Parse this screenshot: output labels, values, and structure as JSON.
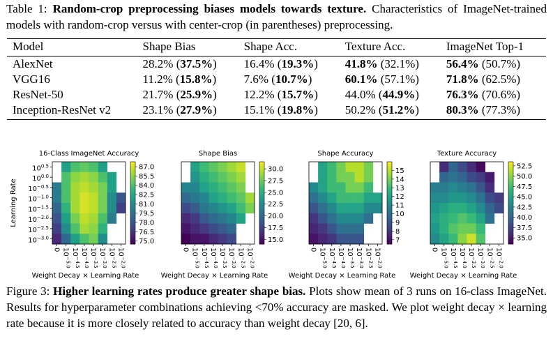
{
  "table_caption": [
    {
      "text": "Table 1: "
    },
    {
      "text": "Random-crop preprocessing biases models towards texture.",
      "bold": true
    },
    {
      "text": " Characteristics of ImageNet-trained models with random-crop versus with center-crop (in parentheses) preprocessing."
    }
  ],
  "table": {
    "header": [
      "Model",
      "Shape Bias",
      "Shape Acc.",
      "Texture Acc.",
      "ImageNet Top-1"
    ],
    "rows": [
      [
        "AlexNet",
        [
          {
            "text": "28.2% ("
          },
          {
            "text": "37.5%",
            "bold": true
          },
          {
            "text": ")"
          }
        ],
        [
          {
            "text": "16.4% ("
          },
          {
            "text": "19.3%",
            "bold": true
          },
          {
            "text": ")"
          }
        ],
        [
          {
            "text": "41.8%",
            "bold": true
          },
          {
            "text": " (32.1%)"
          }
        ],
        [
          {
            "text": "56.4%",
            "bold": true
          },
          {
            "text": " (50.7%)"
          }
        ]
      ],
      [
        "VGG16",
        [
          {
            "text": "11.2% ("
          },
          {
            "text": "15.8%",
            "bold": true
          },
          {
            "text": ")"
          }
        ],
        [
          {
            "text": "7.6% ("
          },
          {
            "text": "10.7%",
            "bold": true
          },
          {
            "text": ")"
          }
        ],
        [
          {
            "text": "60.1%",
            "bold": true
          },
          {
            "text": " (57.1%)"
          }
        ],
        [
          {
            "text": "71.8%",
            "bold": true
          },
          {
            "text": " (62.5%)"
          }
        ]
      ],
      [
        "ResNet-50",
        [
          {
            "text": "21.7% ("
          },
          {
            "text": "25.9%",
            "bold": true
          },
          {
            "text": ")"
          }
        ],
        [
          {
            "text": "12.2% ("
          },
          {
            "text": "15.7%",
            "bold": true
          },
          {
            "text": ")"
          }
        ],
        [
          {
            "text": "44.0% ("
          },
          {
            "text": "44.9%",
            "bold": true
          },
          {
            "text": ")"
          }
        ],
        [
          {
            "text": "76.3%",
            "bold": true
          },
          {
            "text": " (70.6%)"
          }
        ]
      ],
      [
        "Inception-ResNet v2",
        [
          {
            "text": "23.1% ("
          },
          {
            "text": "27.9%",
            "bold": true
          },
          {
            "text": ")"
          }
        ],
        [
          {
            "text": "15.1% ("
          },
          {
            "text": "19.8%",
            "bold": true
          },
          {
            "text": ")"
          }
        ],
        [
          {
            "text": "50.2% ("
          },
          {
            "text": "51.2%",
            "bold": true
          },
          {
            "text": ")"
          }
        ],
        [
          {
            "text": "80.3%",
            "bold": true
          },
          {
            "text": " (77.3%)"
          }
        ]
      ]
    ]
  },
  "chart_data": [
    {
      "type": "heatmap",
      "title": "16-Class ImageNet Accuracy",
      "xlabel": "Weight Decay × Learning Rate",
      "ylabel": "Learning Rate",
      "colormap": "viridis",
      "x_categories": [
        "0",
        {
          "base": "10",
          "exp": "−5.0"
        },
        {
          "base": "10",
          "exp": "−4.5"
        },
        {
          "base": "10",
          "exp": "−4.0"
        },
        {
          "base": "10",
          "exp": "−3.5"
        },
        {
          "base": "10",
          "exp": "−3.0"
        },
        {
          "base": "10",
          "exp": "−2.5"
        },
        {
          "base": "10",
          "exp": "−2.0"
        }
      ],
      "y_categories": [
        {
          "base": "10",
          "exp": "0.5"
        },
        {
          "base": "10",
          "exp": "0.0"
        },
        {
          "base": "10",
          "exp": "−0.5"
        },
        {
          "base": "10",
          "exp": "−1.0"
        },
        {
          "base": "10",
          "exp": "−1.5"
        },
        {
          "base": "10",
          "exp": "−2.0"
        },
        {
          "base": "10",
          "exp": "−2.5"
        },
        {
          "base": "10",
          "exp": "−3.0"
        }
      ],
      "values": [
        [
          null,
          82,
          84,
          84.5,
          84,
          82,
          null,
          null
        ],
        [
          null,
          84,
          85.5,
          86,
          85.5,
          84,
          82,
          null
        ],
        [
          80,
          84,
          86,
          86.5,
          86,
          85,
          82,
          null
        ],
        [
          80,
          84,
          86,
          87,
          86.5,
          85,
          81,
          78
        ],
        [
          79,
          83,
          86,
          87,
          86.5,
          85,
          81,
          77
        ],
        [
          78,
          82,
          85,
          86.5,
          86,
          84,
          80,
          null
        ],
        [
          77,
          81,
          84,
          86,
          85.5,
          83,
          null,
          null
        ],
        [
          76,
          79,
          82,
          84,
          85,
          81,
          null,
          null
        ]
      ],
      "zlim": [
        74.5,
        87.8
      ],
      "zticks": [
        {
          "value": 75,
          "label": "75.0"
        },
        76.5,
        {
          "value": 78,
          "label": "78.0"
        },
        79.5,
        {
          "value": 81,
          "label": "81.0"
        },
        82.5,
        {
          "value": 84,
          "label": "84.0"
        },
        85.5,
        {
          "value": 87,
          "label": "87.0"
        }
      ]
    },
    {
      "type": "heatmap",
      "title": "Shape Bias",
      "xlabel": "Weight Decay × Learning Rate",
      "colormap": "viridis",
      "x_categories": [
        "0",
        {
          "base": "10",
          "exp": "−5.0"
        },
        {
          "base": "10",
          "exp": "−4.5"
        },
        {
          "base": "10",
          "exp": "−4.0"
        },
        {
          "base": "10",
          "exp": "−3.5"
        },
        {
          "base": "10",
          "exp": "−3.0"
        },
        {
          "base": "10",
          "exp": "−2.5"
        },
        {
          "base": "10",
          "exp": "−2.0"
        }
      ],
      "values": [
        [
          null,
          24,
          26,
          27,
          28,
          29,
          30,
          null
        ],
        [
          null,
          23,
          25,
          26,
          27,
          28,
          29,
          null
        ],
        [
          22,
          22,
          24,
          25,
          26,
          27,
          28,
          null
        ],
        [
          20,
          21,
          22,
          24,
          25,
          26,
          27,
          29
        ],
        [
          18,
          19,
          21,
          22,
          23,
          24,
          26,
          28
        ],
        [
          16,
          17,
          19,
          20,
          21,
          22,
          24,
          null
        ],
        [
          15,
          16,
          17,
          18,
          19,
          20,
          null,
          null
        ],
        [
          14,
          15,
          15,
          16,
          17,
          18,
          null,
          null
        ]
      ],
      "zlim": [
        14,
        31.5
      ],
      "zticks": [
        {
          "value": 15,
          "label": "15.0"
        },
        17.5,
        {
          "value": 20,
          "label": "20.0"
        },
        22.5,
        {
          "value": 25,
          "label": "25.0"
        },
        27.5,
        {
          "value": 30,
          "label": "30.0"
        }
      ]
    },
    {
      "type": "heatmap",
      "title": "Shape Accuracy",
      "xlabel": "Weight Decay × Learning Rate",
      "colormap": "viridis",
      "x_categories": [
        "0",
        {
          "base": "10",
          "exp": "−5.0"
        },
        {
          "base": "10",
          "exp": "−4.5"
        },
        {
          "base": "10",
          "exp": "−4.0"
        },
        {
          "base": "10",
          "exp": "−3.5"
        },
        {
          "base": "10",
          "exp": "−3.0"
        },
        {
          "base": "10",
          "exp": "−2.5"
        },
        {
          "base": "10",
          "exp": "−2.0"
        }
      ],
      "values": [
        [
          null,
          12,
          13,
          14,
          15,
          15,
          14,
          null
        ],
        [
          null,
          12,
          13,
          14,
          14,
          15,
          14,
          null
        ],
        [
          11,
          12,
          13,
          13,
          14,
          14,
          13,
          null
        ],
        [
          10,
          11,
          12,
          13,
          13,
          13,
          12,
          12
        ],
        [
          9,
          10,
          11,
          12,
          12,
          12,
          11,
          11
        ],
        [
          8,
          9,
          10,
          11,
          11,
          11,
          10,
          null
        ],
        [
          7.5,
          8,
          9,
          10,
          10,
          10,
          null,
          null
        ],
        [
          7,
          7.5,
          8,
          9,
          9,
          9,
          null,
          null
        ]
      ],
      "zlim": [
        6.5,
        16
      ],
      "zticks": [
        7,
        8,
        9,
        10,
        11,
        12,
        13,
        14,
        15
      ]
    },
    {
      "type": "heatmap",
      "title": "Texture Accuracy",
      "xlabel": "Weight Decay × Learning Rate",
      "colormap": "viridis",
      "x_categories": [
        "0",
        {
          "base": "10",
          "exp": "−5.0"
        },
        {
          "base": "10",
          "exp": "−4.5"
        },
        {
          "base": "10",
          "exp": "−4.0"
        },
        {
          "base": "10",
          "exp": "−3.5"
        },
        {
          "base": "10",
          "exp": "−3.0"
        },
        {
          "base": "10",
          "exp": "−2.5"
        },
        {
          "base": "10",
          "exp": "−2.0"
        }
      ],
      "values": [
        [
          null,
          36,
          40,
          38,
          36,
          34,
          null,
          null
        ],
        [
          null,
          40,
          41,
          40,
          38,
          37,
          35,
          null
        ],
        [
          42,
          42,
          43,
          42,
          41,
          39,
          36,
          null
        ],
        [
          43,
          43,
          44,
          44,
          43,
          41,
          38,
          37
        ],
        [
          44,
          45,
          46,
          46,
          45,
          43,
          40,
          38
        ],
        [
          45,
          46,
          47,
          48,
          47,
          45,
          41,
          null
        ],
        [
          44,
          46,
          48,
          49,
          49,
          47,
          null,
          null
        ],
        [
          43,
          45,
          47,
          50,
          52,
          48,
          null,
          null
        ]
      ],
      "zlim": [
        33.5,
        53.5
      ],
      "zticks": [
        {
          "value": 35,
          "label": "35.0"
        },
        37.5,
        {
          "value": 40,
          "label": "40.0"
        },
        42.5,
        {
          "value": 45,
          "label": "45.0"
        },
        47.5,
        {
          "value": 50,
          "label": "50.0"
        },
        52.5
      ]
    }
  ],
  "figure_caption": [
    {
      "text": "Figure 3: "
    },
    {
      "text": "Higher learning rates produce greater shape bias.",
      "bold": true
    },
    {
      "text": " Plots show mean of 3 runs on 16-class ImageNet. Results for hyperparameter combinations achieving <70% accuracy are masked. We plot weight decay × learning rate because it is more closely related to accuracy than weight decay [20, 6]."
    }
  ]
}
